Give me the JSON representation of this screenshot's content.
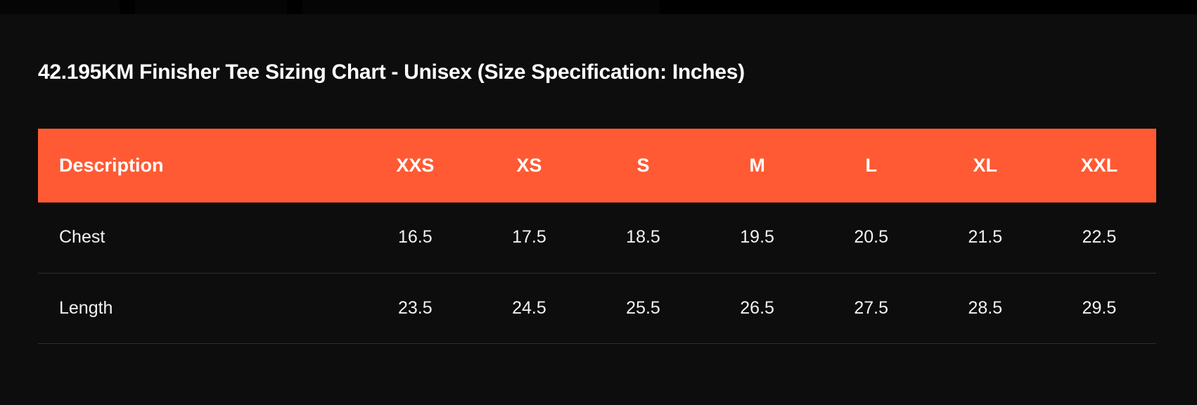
{
  "title": "42.195KM Finisher Tee Sizing Chart - Unisex (Size Specification: Inches)",
  "table": {
    "headers": [
      "Description",
      "XXS",
      "XS",
      "S",
      "M",
      "L",
      "XL",
      "XXL"
    ],
    "rows": [
      {
        "label": "Chest",
        "values": [
          "16.5",
          "17.5",
          "18.5",
          "19.5",
          "20.5",
          "21.5",
          "22.5"
        ]
      },
      {
        "label": "Length",
        "values": [
          "23.5",
          "24.5",
          "25.5",
          "26.5",
          "27.5",
          "28.5",
          "29.5"
        ]
      }
    ]
  },
  "colors": {
    "background": "#0d0d0d",
    "header_accent": "#ff5a33",
    "row_divider": "#2e2e2e",
    "text": "#ffffff"
  }
}
